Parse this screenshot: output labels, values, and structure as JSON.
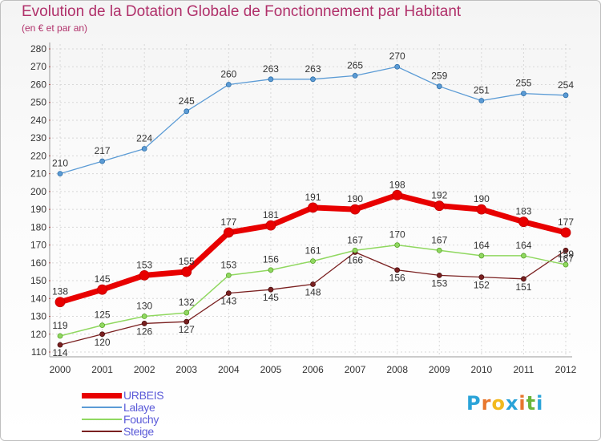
{
  "title": "Evolution de la Dotation Globale de Fonctionnement par Habitant",
  "subtitle": "(en € et par an)",
  "logo": {
    "text": "Proxiti",
    "letter_colors": [
      "#2aa3d8",
      "#e8772e",
      "#f2b91d",
      "#2aa3d8",
      "#e8772e",
      "#6ab53a",
      "#2aa3d8"
    ]
  },
  "chart_data": {
    "type": "line",
    "title": "Evolution de la Dotation Globale de Fonctionnement par Habitant",
    "subtitle": "(en € et par an)",
    "x": [
      "2000",
      "2001",
      "2002",
      "2003",
      "2004",
      "2005",
      "2006",
      "2007",
      "2008",
      "2009",
      "2010",
      "2011",
      "2012"
    ],
    "ylim": [
      110,
      280
    ],
    "yticks": [
      110,
      120,
      130,
      140,
      150,
      160,
      170,
      180,
      190,
      200,
      210,
      220,
      230,
      240,
      250,
      260,
      270,
      280
    ],
    "grid": true,
    "legend": "bottom-left",
    "series": [
      {
        "name": "URBEIS",
        "color": "#e80000",
        "values": [
          138,
          145,
          153,
          155,
          177,
          181,
          191,
          190,
          198,
          192,
          190,
          183,
          177
        ]
      },
      {
        "name": "Lalaye",
        "color": "#5b9bd5",
        "values": [
          210,
          217,
          224,
          245,
          260,
          263,
          263,
          265,
          270,
          259,
          251,
          255,
          254
        ]
      },
      {
        "name": "Fouchy",
        "color": "#90d860",
        "values": [
          119,
          125,
          130,
          132,
          153,
          156,
          161,
          167,
          170,
          167,
          164,
          164,
          159
        ]
      },
      {
        "name": "Steige",
        "color": "#7a2020",
        "values": [
          114,
          120,
          126,
          127,
          143,
          145,
          148,
          166,
          156,
          153,
          152,
          151,
          167
        ]
      }
    ]
  }
}
